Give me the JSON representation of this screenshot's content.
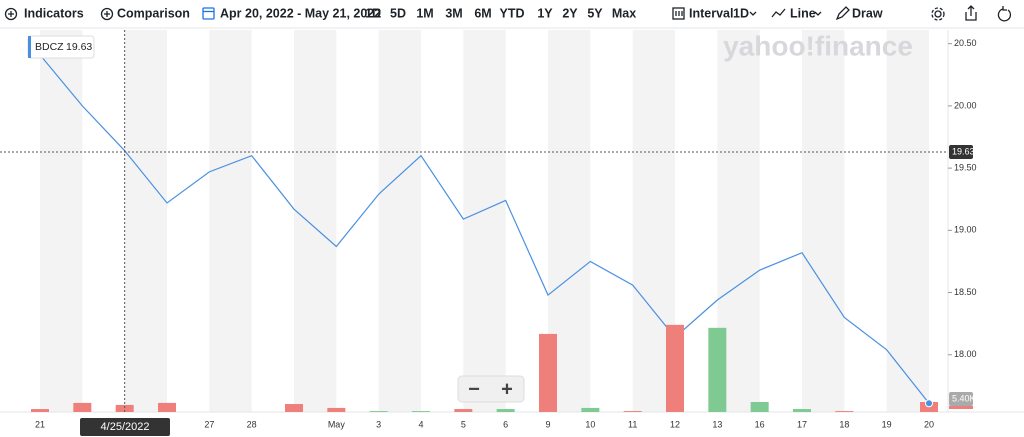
{
  "toolbar": {
    "indicators": "Indicators",
    "comparison": "Comparison",
    "date_range": "Apr 20, 2022 - May 21, 2022",
    "ranges": [
      "1D",
      "5D",
      "1M",
      "3M",
      "6M",
      "YTD",
      "1Y",
      "2Y",
      "5Y",
      "Max"
    ],
    "interval_label": "Interval",
    "interval": "1D",
    "chart_style": "Line",
    "draw": "Draw"
  },
  "watermark": "yahoo!finance",
  "zoom_controls": [
    "−",
    "+"
  ],
  "chart_data": {
    "type": "line",
    "categories": [
      "21",
      null,
      null,
      null,
      "27",
      "28",
      null,
      "May",
      "3",
      "4",
      "5",
      "6",
      "9",
      "10",
      "11",
      "12",
      "13",
      "16",
      "17",
      "18",
      "19",
      "20"
    ],
    "series": [
      {
        "name": "BDCZ",
        "color": "#4a90e2",
        "values": [
          20.41,
          20.0,
          19.64,
          19.22,
          19.47,
          19.6,
          19.17,
          18.87,
          19.29,
          19.6,
          19.09,
          19.24,
          18.48,
          18.75,
          18.56,
          18.14,
          18.44,
          18.68,
          18.82,
          18.3,
          18.04,
          17.61
        ]
      },
      {
        "type": "bar",
        "axis": "y2",
        "colors": [
          "#ef7f7a",
          "#ef7f7a",
          "#ef7f7a",
          "#ef7f7a",
          "#ef7f7a",
          "#ef7f7a",
          "#ef7f7a",
          "#ef7f7a",
          "#7fca92",
          "#7fca92",
          "#ef7f7a",
          "#7fca92",
          "#ef7f7a",
          "#7fca92",
          "#ef7f7a",
          "#ef7f7a",
          "#7fca92",
          "#7fca92",
          "#7fca92",
          "#ef7f7a",
          "#ef7f7a",
          "#ef7f7a"
        ],
        "values": [
          1600,
          4900,
          3800,
          4900,
          0,
          0,
          4300,
          2200,
          500,
          500,
          1600,
          1600,
          42100,
          2200,
          500,
          47000,
          45400,
          5400,
          1600,
          500,
          0,
          5400
        ],
        "value_labels": [
          null,
          null,
          null,
          null,
          null,
          null,
          null,
          null,
          null,
          null,
          null,
          null,
          null,
          null,
          null,
          null,
          null,
          null,
          null,
          null,
          null,
          "5.40K"
        ]
      }
    ],
    "ylim": [
      17.54,
      20.61
    ],
    "yticks": [
      {
        "value": 18,
        "label": "18.00"
      },
      {
        "value": 18.5,
        "label": "18.50"
      },
      {
        "value": 19,
        "label": "19.00"
      },
      {
        "value": 19.5,
        "label": "19.50"
      },
      {
        "value": 20,
        "label": "20.00"
      },
      {
        "value": 20.5,
        "label": "20.50"
      }
    ],
    "y2lim": [
      0,
      206000
    ],
    "crosshair": {
      "x": "4/25/2022",
      "y": 19.63
    }
  }
}
